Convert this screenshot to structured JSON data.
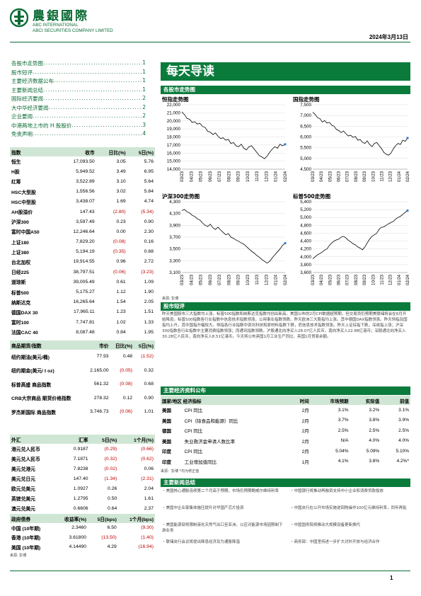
{
  "header": {
    "logo_cn": "農銀國際",
    "company_en_1": "ABC INTERNATIONAL",
    "company_en_2": "ABCI SECURITIES COMPANY LIMITED",
    "date": "2024年3月13日"
  },
  "toc": [
    {
      "title": "各股市走势图",
      "page": "1"
    },
    {
      "title": "股市短评",
      "page": "1"
    },
    {
      "title": "主要经济数据公布",
      "page": "1"
    },
    {
      "title": "主要新闻总结",
      "page": "1"
    },
    {
      "title": "国际经济要闻",
      "page": "2"
    },
    {
      "title": "大中华经济要闻",
      "page": "2"
    },
    {
      "title": "企业要闻",
      "page": "2"
    },
    {
      "title": "中港两地上市的 H 股股价",
      "page": "3"
    },
    {
      "title": "免责声明",
      "page": "4"
    }
  ],
  "banner_title": "每天导读",
  "index_table": {
    "headers": [
      "指数",
      "收市",
      "日比(%)",
      "5日(%)"
    ],
    "rows": [
      [
        "恒生",
        "17,093.50",
        "3.05",
        "5.76"
      ],
      [
        "H股",
        "5,949.52",
        "3.49",
        "6.95"
      ],
      [
        "红筹",
        "3,522.89",
        "3.10",
        "5.64"
      ],
      [
        "HSC大型股",
        "1,556.56",
        "3.02",
        "5.84"
      ],
      [
        "HSC中型股",
        "3,438.07",
        "1.69",
        "4.74"
      ],
      [
        "AH股溢价",
        "147.43",
        "(2.80)",
        "(5.34)"
      ],
      [
        "沪深300",
        "3,597.49",
        "0.23",
        "0.90"
      ],
      [
        "富时中国A50",
        "12,246.64",
        "0.00",
        "2.30"
      ],
      [
        "上证180",
        "7,829.20",
        "(0.08)",
        "0.16"
      ],
      [
        "上证380",
        "5,194.19",
        "(0.35)",
        "0.88"
      ],
      [
        "台北加权",
        "19,914.55",
        "0.96",
        "2.72"
      ],
      [
        "日经225",
        "38,797.51",
        "(0.06)",
        "(3.23)"
      ],
      [
        "道琼斯",
        "39,005.49",
        "0.61",
        "1.09"
      ],
      [
        "标普500",
        "5,175.27",
        "1.12",
        "1.90"
      ],
      [
        "纳斯达克",
        "16,265.64",
        "1.54",
        "2.05"
      ],
      [
        "德国DAX 30",
        "17,965.11",
        "1.23",
        "1.51"
      ],
      [
        "富时100",
        "7,747.81",
        "1.02",
        "1.33"
      ],
      [
        "法国CAC 40",
        "8,087.48",
        "0.84",
        "1.95"
      ]
    ]
  },
  "commodity_table": {
    "headers": [
      "商品期货/指数",
      "市价",
      "日比(%)",
      "5日(%)"
    ],
    "rows": [
      [
        "纽约期油(美元/桶)",
        "77.93",
        "0.48",
        "(1.52)"
      ],
      [
        "纽约期金(美元/ t oz)",
        "2,165.00",
        "(0.05)",
        "0.32"
      ],
      [
        "标普高盛 商品指数",
        "561.32",
        "(0.08)",
        "0.68"
      ],
      [
        "CRB大宗商品 期货价格指数",
        "278.32",
        "0.12",
        "0.90"
      ],
      [
        "罗杰斯国际 商品指数",
        "3,746.73",
        "(0.06)",
        "1.01"
      ]
    ]
  },
  "fx_table": {
    "headers": [
      "外汇",
      "汇率",
      "5日(%)",
      "1个月(%)"
    ],
    "rows": [
      [
        "港元兑人民币",
        "0.9187",
        "(0.29)",
        "(0.66)"
      ],
      [
        "美元兑人民币",
        "7.1871",
        "(0.32)",
        "(0.62)"
      ],
      [
        "美元兑港元",
        "7.8238",
        "(0.02)",
        "0.06"
      ],
      [
        "美元兑日元",
        "147.40",
        "(1.34)",
        "(2.31)"
      ],
      [
        "欧元兑美元",
        "1.0927",
        "0.26",
        "2.04"
      ],
      [
        "英镑兑美元",
        "1.2795",
        "0.50",
        "1.61"
      ],
      [
        "澳元兑美元",
        "0.6606",
        "0.64",
        "2.37"
      ]
    ]
  },
  "bond_table": {
    "headers": [
      "政府债券",
      "收益率(%)",
      "5日(bps)",
      "1个月(bps)"
    ],
    "rows": [
      [
        "中国 (10年期)",
        "2.3460",
        "6.50",
        "(9.30)"
      ],
      [
        "香港 (10年期)",
        "3.61800",
        "(13.50)",
        "(1.40)"
      ],
      [
        "美国 (10年期)",
        "4.14490",
        "4.29",
        "(16.94)"
      ]
    ]
  },
  "bond_source": "来源: 彭博",
  "charts_band": "各股市走势图",
  "charts": [
    {
      "title": "恒指走势图",
      "yticks": [
        "22,000",
        "21,000",
        "20,000",
        "19,000",
        "18,000",
        "17,000",
        "16,000",
        "15,000",
        "14,000"
      ],
      "ylim": [
        14000,
        22000
      ],
      "series": [
        21100,
        20800,
        20300,
        20200,
        19800,
        19900,
        19600,
        19700,
        19300,
        19200,
        18700,
        18600,
        18300,
        18500,
        18100,
        17800,
        17900,
        17600,
        17700,
        17200,
        17300,
        16900,
        16800,
        17100,
        16600,
        16400,
        16800,
        16900,
        16500,
        16100,
        15700,
        15500,
        15300,
        15600,
        16100,
        16500,
        16800,
        16600,
        17100,
        16900,
        17093
      ]
    },
    {
      "title": "国指走势图",
      "yticks": [
        "7,500",
        "7,000",
        "6,500",
        "6,000",
        "5,500",
        "5,000",
        "4,500"
      ],
      "ylim": [
        4500,
        7500
      ],
      "series": [
        7150,
        7050,
        6900,
        6860,
        6700,
        6760,
        6650,
        6680,
        6550,
        6500,
        6350,
        6300,
        6200,
        6280,
        6150,
        6050,
        6080,
        5980,
        6020,
        5850,
        5880,
        5750,
        5700,
        5820,
        5650,
        5550,
        5700,
        5740,
        5600,
        5460,
        5280,
        5200,
        5150,
        5250,
        5450,
        5600,
        5700,
        5650,
        5850,
        5800,
        5950
      ]
    },
    {
      "title": "沪深300走势图",
      "yticks": [
        "4,300",
        "4,100",
        "3,900",
        "3,700",
        "3,500",
        "3,300",
        "3,100"
      ],
      "ylim": [
        3100,
        4300
      ],
      "series": [
        4150,
        4170,
        4130,
        4110,
        4070,
        4050,
        4010,
        3990,
        3940,
        3900,
        3880,
        3920,
        3860,
        3830,
        3870,
        3820,
        3780,
        3740,
        3760,
        3700,
        3680,
        3650,
        3630,
        3600,
        3580,
        3540,
        3500,
        3460,
        3430,
        3390,
        3360,
        3320,
        3290,
        3260,
        3290,
        3350,
        3400,
        3450,
        3500,
        3560,
        3597
      ]
    },
    {
      "title": "标普500走势图",
      "yticks": [
        "5,400",
        "5,200",
        "5,000",
        "4,800",
        "4,600",
        "4,400",
        "4,200",
        "4,000",
        "3,800",
        "3,600"
      ],
      "ylim": [
        3600,
        5400
      ],
      "series": [
        3950,
        4000,
        4050,
        4080,
        4120,
        4170,
        4200,
        4290,
        4350,
        4400,
        4430,
        4450,
        4500,
        4520,
        4480,
        4420,
        4380,
        4330,
        4300,
        4250,
        4220,
        4180,
        4250,
        4350,
        4450,
        4520,
        4560,
        4600,
        4700,
        4750,
        4760,
        4800,
        4840,
        4870,
        4900,
        4960,
        5000,
        5030,
        5080,
        5130,
        5175
      ]
    }
  ],
  "chart_xticks": [
    "03/23",
    "04/23",
    "05/23",
    "06/23",
    "07/23",
    "08/23",
    "09/23",
    "10/23",
    "11/23",
    "12/23",
    "01/24",
    "02/24"
  ],
  "chart_source": "来源: 彭博",
  "commentary_band": "股市短评",
  "commentary": "昨天美国股市三大指数均上涨，标普500指数和纳斯达克指数均创出新高。美国公布的2月CPI数据超预期，但交易员仍预期美联储将会在6月开始降息。标普500指数各行业指数中信息技术指数领涨，公用事业指数领跌。昨天欧洲三大股指均上涨。其中德国DAX指数领涨。昨天恒指及国指均上升，其中国指升幅较大。恒指各行业指数中资讯科技和原材料指数下跌，而信息技术指数领涨。昨天上证综指下跌，深成指上涨；沪深300指数各行业指数中主要消费指数领涨；而通讯指数领跌。沪股通北向净买入28.07亿人民币，南向净买入22.88亿港币；深股通北向净买入30.28亿人民币，南向净买入8.51亿港币。今天将公布英国1月工业生产同比、英国1月贸易余额。",
  "econ": {
    "band": "主要经济资料公布",
    "headers": [
      "国家/地区 经济指标",
      "时间",
      "市场预期",
      "实际值",
      "前值"
    ],
    "rows": [
      [
        "美国",
        "CPI 同比",
        "2月",
        "3.1%",
        "3.2%",
        "3.1%"
      ],
      [
        "美国",
        "CPI（除食品和能源）同比",
        "2月",
        "3.7%",
        "3.8%",
        "3.9%"
      ],
      [
        "德国",
        "CPI 同比",
        "2月",
        "2.5%",
        "2.5%",
        "2.5%"
      ],
      [
        "美国",
        "失业救济金申请人数比率",
        "2月",
        "N/A",
        "4.0%",
        "4.0%"
      ],
      [
        "印度",
        "CPI 同比",
        "2月",
        "5.04%",
        "5.09%",
        "5.10%"
      ],
      [
        "印度",
        "工业增加值同比",
        "1月",
        "4.1%",
        "3.8%",
        "4.2%*"
      ]
    ],
    "source": "来源：彭博  *均为修正值"
  },
  "news": {
    "band": "主要新闻总结",
    "left": [
      "・美国核心通胀连续第二个月高于预期，市场仍预期鲍威尔维持利率",
      "・美国中企业家集体施压提升对华国产芯片投资",
      "・美国能源部将限制液化天然气出口至亚洲，以应对能源市场因限制下游业务",
      "・联储央行会议将提出降息经济及为通胀降温"
    ],
    "right": [
      "・中国银行将推动再融资支持中小企业和消费贷款投放",
      "・中国央行在公开市场实施逆回购操作100亿元维持利率，同年再贴",
      "・中国国务院将推动大规模设备更新换代",
      "・商务部：中国坚持进一步扩大对外开放与经济合作"
    ]
  },
  "page_number": "1"
}
